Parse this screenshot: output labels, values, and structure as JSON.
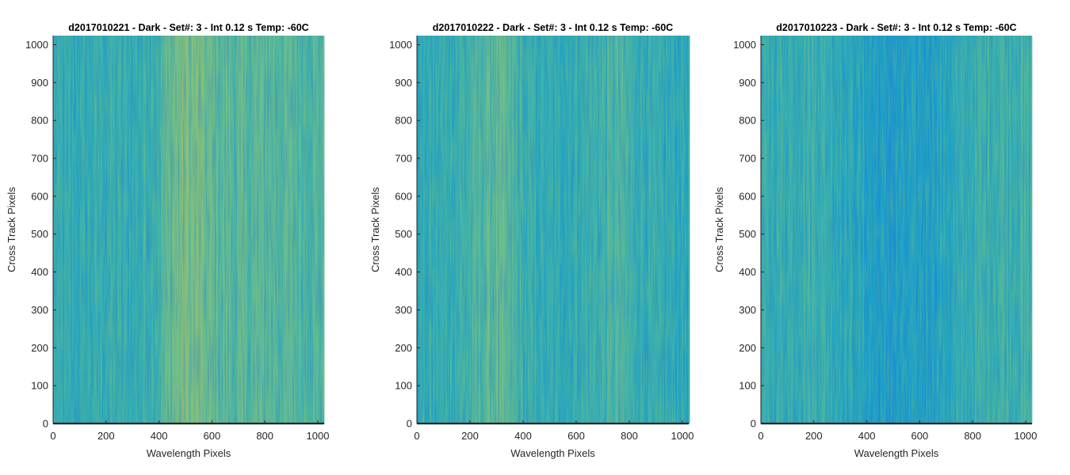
{
  "chart_data": [
    {
      "type": "heatmap",
      "title": "d2017010221 - Dark - Set#: 3 - Int 0.12 s Temp: -60C",
      "xlabel": "Wavelength Pixels",
      "ylabel": "Cross Track Pixels",
      "xlim": [
        0,
        1024
      ],
      "ylim": [
        0,
        1024
      ],
      "xticks": [
        "0",
        "200",
        "400",
        "600",
        "800",
        "1000"
      ],
      "yticks": [
        "0",
        "100",
        "200",
        "300",
        "400",
        "500",
        "600",
        "700",
        "800",
        "900",
        "1000"
      ],
      "colormap": [
        "#1f86d9",
        "#1aa1c9",
        "#3ab0b0",
        "#74bd8a",
        "#b5c260"
      ],
      "column_profile": {
        "x": [
          0,
          100,
          200,
          300,
          400,
          450,
          500,
          550,
          600,
          700,
          800,
          900,
          1024
        ],
        "level": [
          0.42,
          0.4,
          0.46,
          0.42,
          0.55,
          0.72,
          0.78,
          0.74,
          0.66,
          0.62,
          0.64,
          0.62,
          0.6
        ]
      }
    },
    {
      "type": "heatmap",
      "title": "d2017010222 - Dark - Set#: 3 - Int 0.12 s Temp: -60C",
      "xlabel": "Wavelength Pixels",
      "ylabel": "Cross Track Pixels",
      "xlim": [
        0,
        1024
      ],
      "ylim": [
        0,
        1024
      ],
      "xticks": [
        "0",
        "200",
        "400",
        "600",
        "800",
        "1000"
      ],
      "yticks": [
        "0",
        "100",
        "200",
        "300",
        "400",
        "500",
        "600",
        "700",
        "800",
        "900",
        "1000"
      ],
      "colormap": [
        "#1f86d9",
        "#1aa1c9",
        "#3ab0b0",
        "#74bd8a",
        "#b5c260"
      ],
      "column_profile": {
        "x": [
          0,
          100,
          200,
          250,
          300,
          350,
          400,
          500,
          600,
          700,
          750,
          800,
          900,
          1024
        ],
        "level": [
          0.38,
          0.44,
          0.52,
          0.62,
          0.66,
          0.58,
          0.46,
          0.4,
          0.44,
          0.52,
          0.58,
          0.5,
          0.4,
          0.38
        ]
      }
    },
    {
      "type": "heatmap",
      "title": "d2017010223 - Dark - Set#: 3 - Int 0.12 s Temp: -60C",
      "xlabel": "Wavelength Pixels",
      "ylabel": "Cross Track Pixels",
      "xlim": [
        0,
        1024
      ],
      "ylim": [
        0,
        1024
      ],
      "xticks": [
        "0",
        "200",
        "400",
        "600",
        "800",
        "1000"
      ],
      "yticks": [
        "0",
        "100",
        "200",
        "300",
        "400",
        "500",
        "600",
        "700",
        "800",
        "900",
        "1000"
      ],
      "colormap": [
        "#1f86d9",
        "#1aa1c9",
        "#3ab0b0",
        "#74bd8a",
        "#b5c260"
      ],
      "column_profile": {
        "x": [
          0,
          100,
          200,
          300,
          400,
          450,
          500,
          550,
          600,
          700,
          800,
          900,
          1024
        ],
        "level": [
          0.42,
          0.46,
          0.5,
          0.4,
          0.26,
          0.2,
          0.18,
          0.2,
          0.22,
          0.32,
          0.46,
          0.52,
          0.5
        ]
      }
    }
  ]
}
